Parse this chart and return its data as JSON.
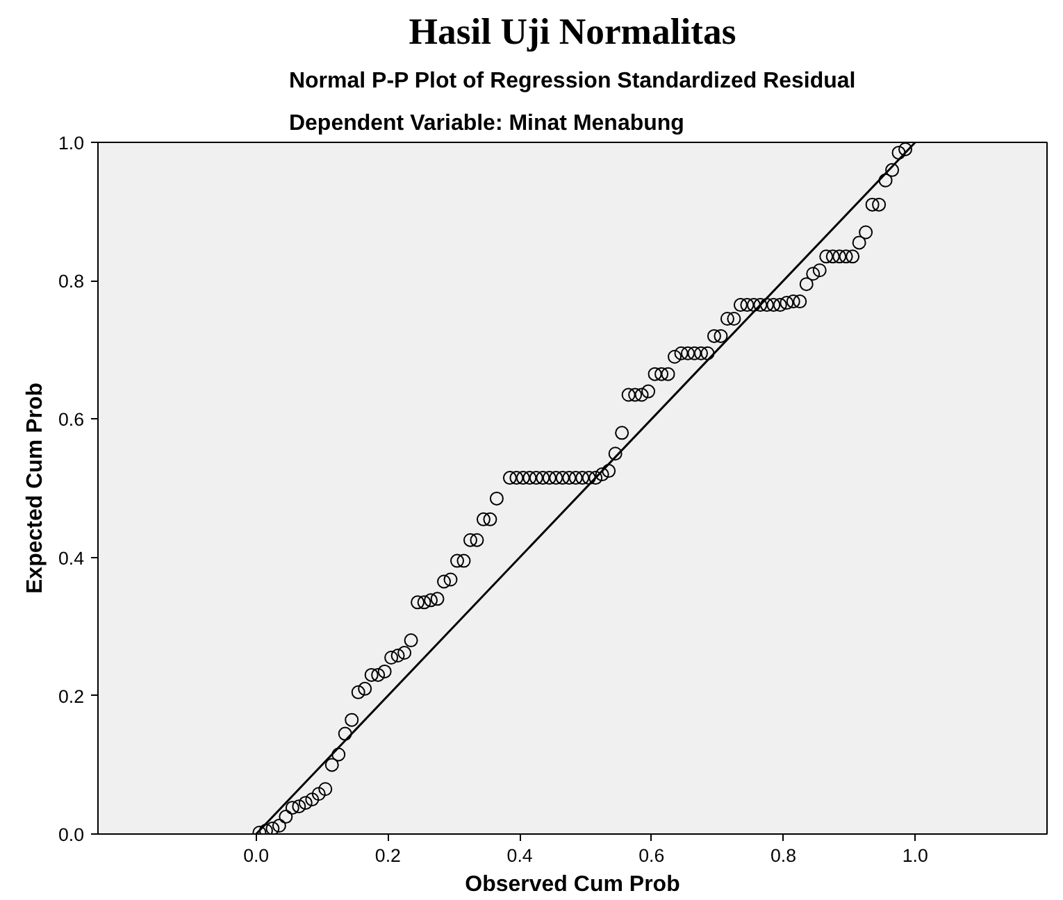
{
  "chart_data": {
    "type": "scatter",
    "title": "Hasil Uji Normalitas",
    "subtitle": "Normal P-P Plot of Regression Standardized Residual\nDependent Variable: Minat Menabung",
    "xlabel": "Observed Cum Prob",
    "ylabel": "Expected Cum Prob",
    "xlim": [
      -0.24,
      1.2
    ],
    "ylim": [
      0,
      1
    ],
    "xticks": [
      {
        "value": 0,
        "label": "0.0"
      },
      {
        "value": 0.2,
        "label": "0.2"
      },
      {
        "value": 0.4,
        "label": "0.4"
      },
      {
        "value": 0.6,
        "label": "0.6"
      },
      {
        "value": 0.8,
        "label": "0.8"
      },
      {
        "value": 1,
        "label": "1.0"
      }
    ],
    "yticks": [
      {
        "value": 0,
        "label": "0.0"
      },
      {
        "value": 0.2,
        "label": "0.2"
      },
      {
        "value": 0.4,
        "label": "0.4"
      },
      {
        "value": 0.6,
        "label": "0.6"
      },
      {
        "value": 0.8,
        "label": "0.8"
      },
      {
        "value": 1,
        "label": "1.0"
      }
    ],
    "grid": false,
    "series": [
      {
        "color": "#000000",
        "marker": "circle",
        "x": [
          0.005,
          0.015,
          0.025,
          0.035,
          0.045,
          0.055,
          0.065,
          0.075,
          0.085,
          0.095,
          0.105,
          0.115,
          0.125,
          0.135,
          0.145,
          0.155,
          0.165,
          0.175,
          0.185,
          0.195,
          0.205,
          0.215,
          0.225,
          0.235,
          0.245,
          0.255,
          0.265,
          0.275,
          0.285,
          0.295,
          0.305,
          0.315,
          0.325,
          0.335,
          0.345,
          0.355,
          0.365,
          0.385,
          0.395,
          0.405,
          0.415,
          0.425,
          0.435,
          0.445,
          0.455,
          0.465,
          0.475,
          0.485,
          0.495,
          0.505,
          0.515,
          0.525,
          0.535,
          0.545,
          0.555,
          0.565,
          0.575,
          0.585,
          0.595,
          0.605,
          0.615,
          0.625,
          0.635,
          0.645,
          0.655,
          0.665,
          0.675,
          0.685,
          0.695,
          0.705,
          0.715,
          0.725,
          0.735,
          0.745,
          0.755,
          0.765,
          0.775,
          0.785,
          0.795,
          0.805,
          0.815,
          0.825,
          0.835,
          0.845,
          0.855,
          0.865,
          0.875,
          0.885,
          0.895,
          0.905,
          0.915,
          0.925,
          0.935,
          0.945,
          0.955,
          0.965,
          0.975,
          0.985
        ],
        "values": [
          0.002,
          0.005,
          0.008,
          0.012,
          0.025,
          0.038,
          0.04,
          0.045,
          0.05,
          0.058,
          0.065,
          0.1,
          0.115,
          0.145,
          0.165,
          0.205,
          0.21,
          0.23,
          0.23,
          0.235,
          0.255,
          0.258,
          0.262,
          0.28,
          0.335,
          0.335,
          0.338,
          0.34,
          0.365,
          0.368,
          0.395,
          0.395,
          0.425,
          0.425,
          0.455,
          0.455,
          0.485,
          0.515,
          0.515,
          0.515,
          0.515,
          0.515,
          0.515,
          0.515,
          0.515,
          0.515,
          0.515,
          0.515,
          0.515,
          0.515,
          0.515,
          0.52,
          0.525,
          0.55,
          0.58,
          0.635,
          0.635,
          0.635,
          0.64,
          0.665,
          0.665,
          0.665,
          0.69,
          0.695,
          0.695,
          0.695,
          0.695,
          0.695,
          0.72,
          0.72,
          0.745,
          0.745,
          0.765,
          0.765,
          0.765,
          0.765,
          0.765,
          0.765,
          0.765,
          0.768,
          0.77,
          0.77,
          0.795,
          0.81,
          0.815,
          0.835,
          0.835,
          0.835,
          0.835,
          0.835,
          0.855,
          0.87,
          0.91,
          0.91,
          0.945,
          0.96,
          0.985,
          0.99
        ]
      },
      {
        "type": "line",
        "marker": "none",
        "color": "#000000",
        "x": [
          0,
          1
        ],
        "values": [
          0,
          1
        ]
      }
    ]
  }
}
